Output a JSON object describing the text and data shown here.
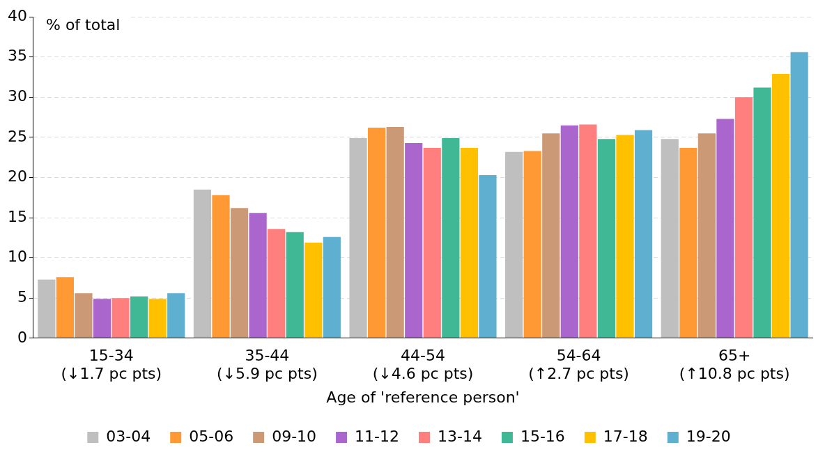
{
  "chart_data": {
    "type": "bar",
    "ylabel": "% of total",
    "xlabel": "Age of 'reference person'",
    "categories": [
      "15-34\n(↓1.7 pc pts)",
      "35-44\n(↓5.9 pc pts)",
      "44-54\n(↓4.6 pc pts)",
      "54-64\n(↑2.7 pc pts)",
      "65+\n(↑10.8 pc pts)"
    ],
    "series": [
      {
        "name": "03-04",
        "color": "#bfbfbf",
        "values": [
          7.3,
          18.5,
          24.9,
          23.2,
          24.8
        ]
      },
      {
        "name": "05-06",
        "color": "#ff9933",
        "values": [
          7.6,
          17.8,
          26.2,
          23.3,
          23.7
        ]
      },
      {
        "name": "09-10",
        "color": "#cc9977",
        "values": [
          5.6,
          16.2,
          26.3,
          25.5,
          25.5
        ]
      },
      {
        "name": "11-12",
        "color": "#aa66cc",
        "values": [
          4.9,
          15.6,
          24.3,
          26.5,
          27.3
        ]
      },
      {
        "name": "13-14",
        "color": "#ff7f7f",
        "values": [
          5.0,
          13.6,
          23.7,
          26.6,
          30.0
        ]
      },
      {
        "name": "15-16",
        "color": "#40b896",
        "values": [
          5.2,
          13.2,
          24.9,
          24.8,
          31.2
        ]
      },
      {
        "name": "17-18",
        "color": "#ffc000",
        "values": [
          4.9,
          11.9,
          23.7,
          25.3,
          32.9
        ]
      },
      {
        "name": "19-20",
        "color": "#5fb0d0",
        "values": [
          5.6,
          12.6,
          20.3,
          25.9,
          35.6
        ]
      }
    ],
    "ylim": [
      0,
      40
    ],
    "yticks": [
      0,
      5,
      10,
      15,
      20,
      25,
      30,
      35,
      40
    ],
    "grid": "y",
    "legend": "bottom"
  }
}
